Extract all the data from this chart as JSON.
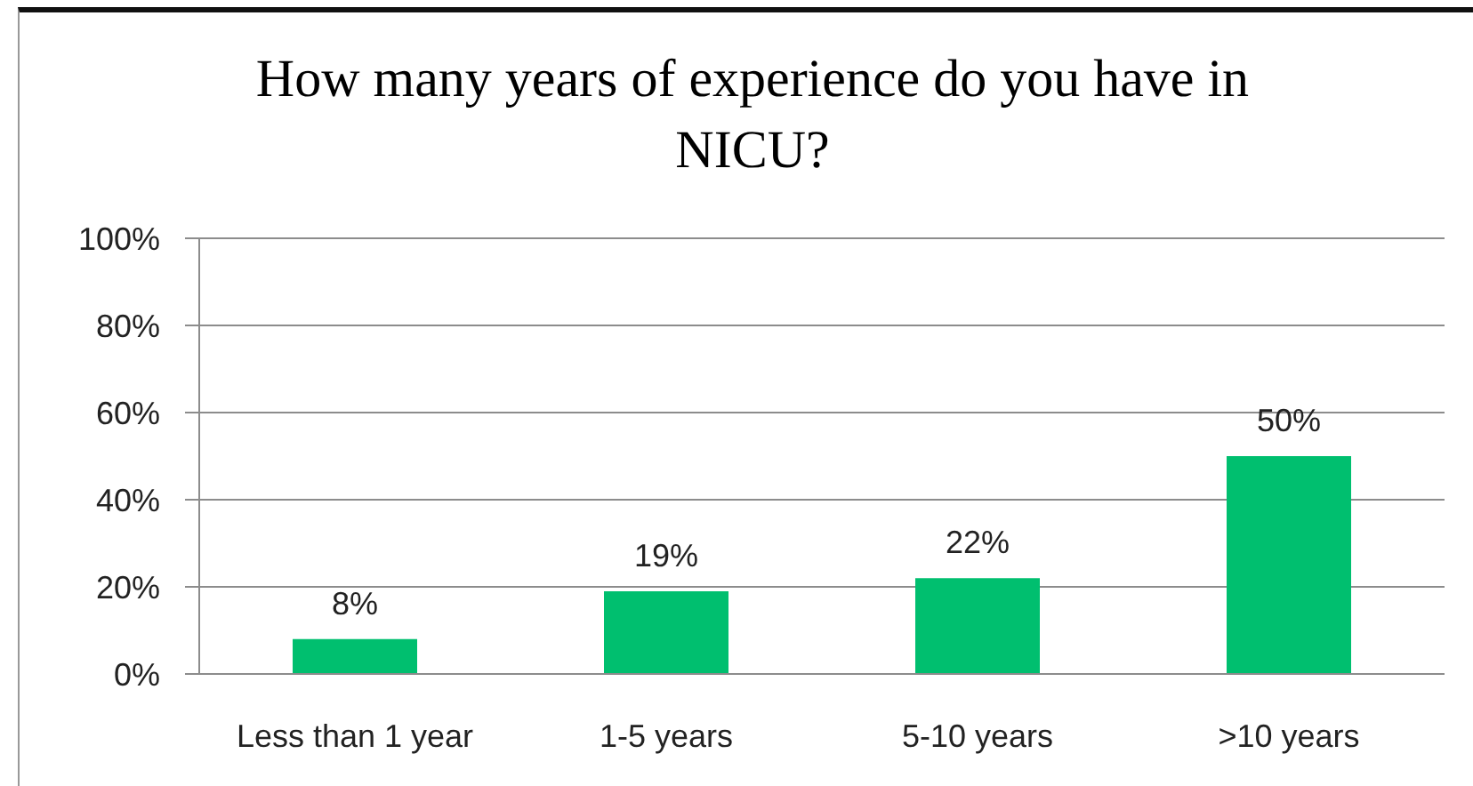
{
  "chart_data": {
    "type": "bar",
    "title": "How many years of experience do you have in NICU?",
    "categories": [
      "Less than 1 year",
      "1-5 years",
      "5-10 years",
      ">10 years"
    ],
    "values": [
      8,
      19,
      22,
      50
    ],
    "value_labels": [
      "8%",
      "19%",
      "22%",
      "50%"
    ],
    "color": "#00bf6f",
    "ylim": [
      0,
      100
    ],
    "yticks": [
      {
        "value": 0,
        "label": "0%"
      },
      {
        "value": 20,
        "label": "20%"
      },
      {
        "value": 40,
        "label": "40%"
      },
      {
        "value": 60,
        "label": "60%"
      },
      {
        "value": 80,
        "label": "80%"
      },
      {
        "value": 100,
        "label": "100%"
      }
    ],
    "grid": "y"
  }
}
